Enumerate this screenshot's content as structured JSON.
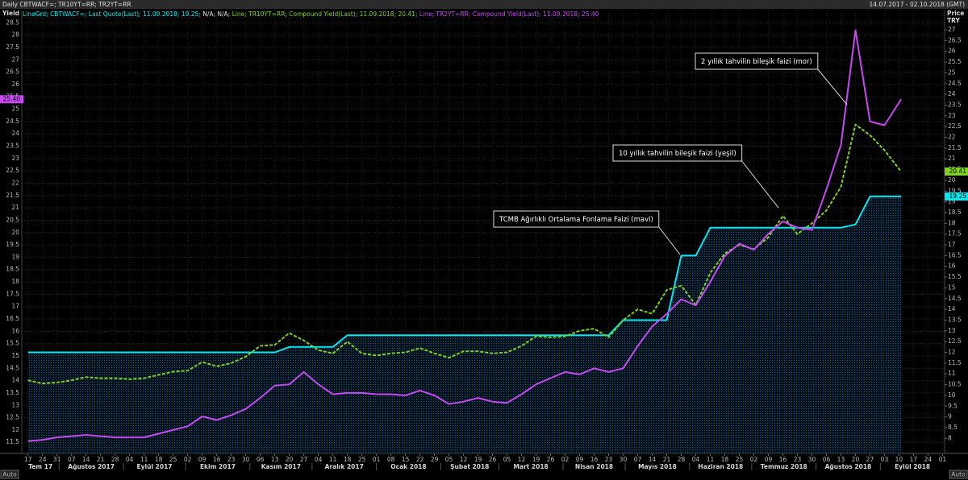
{
  "chart_data": {
    "type": "line",
    "title": "Daily CBTWACF=; TR10YT=RR; TR2YT=RR",
    "date_range": "14.07.2017 - 02.10.2018 (GMT)",
    "ylabel": "Yield",
    "y2label": [
      "Price",
      "TRY"
    ],
    "auto_button": "Auto",
    "legend_gap": "N/A; N/A;",
    "xlim": [
      "2017-07-14",
      "2018-10-02"
    ],
    "ylim": [
      11.05,
      29.0
    ],
    "y2lim": [
      7.3,
      27.9
    ],
    "grid": true,
    "x": [
      "2017-07-17",
      "2017-07-24",
      "2017-07-31",
      "2017-08-07",
      "2017-08-14",
      "2017-08-21",
      "2017-08-28",
      "2017-09-04",
      "2017-09-11",
      "2017-09-18",
      "2017-09-25",
      "2017-10-02",
      "2017-10-09",
      "2017-10-16",
      "2017-10-23",
      "2017-10-30",
      "2017-11-06",
      "2017-11-13",
      "2017-11-20",
      "2017-11-27",
      "2017-12-04",
      "2017-12-11",
      "2017-12-18",
      "2017-12-25",
      "2018-01-01",
      "2018-01-08",
      "2018-01-15",
      "2018-01-22",
      "2018-01-29",
      "2018-02-05",
      "2018-02-12",
      "2018-02-19",
      "2018-02-26",
      "2018-03-05",
      "2018-03-12",
      "2018-03-19",
      "2018-03-26",
      "2018-04-02",
      "2018-04-09",
      "2018-04-16",
      "2018-04-23",
      "2018-04-30",
      "2018-05-07",
      "2018-05-14",
      "2018-05-21",
      "2018-05-28",
      "2018-06-04",
      "2018-06-11",
      "2018-06-18",
      "2018-06-25",
      "2018-07-02",
      "2018-07-09",
      "2018-07-16",
      "2018-07-23",
      "2018-07-30",
      "2018-08-06",
      "2018-08-13",
      "2018-08-20",
      "2018-08-27",
      "2018-09-03",
      "2018-09-11"
    ],
    "series": [
      {
        "legend": "LineGrd; CBTWACF=; Last Quote(Last); 11.09.2018; 19.25;",
        "color": "#00e8f0",
        "axis": "y2",
        "style": "solid",
        "area": true,
        "value_label": "19.25",
        "values": [
          12,
          12,
          12,
          12,
          12,
          12,
          12,
          12,
          12,
          12,
          12,
          12,
          12,
          12,
          12,
          12,
          12,
          12,
          12.25,
          12.25,
          12.25,
          12.25,
          12.8,
          12.8,
          12.8,
          12.8,
          12.8,
          12.8,
          12.8,
          12.8,
          12.8,
          12.8,
          12.8,
          12.8,
          12.8,
          12.8,
          12.8,
          12.8,
          12.8,
          12.8,
          12.8,
          13.5,
          13.5,
          13.5,
          13.5,
          16.5,
          16.5,
          17.8,
          17.8,
          17.8,
          17.8,
          17.8,
          17.8,
          17.8,
          17.8,
          17.8,
          17.8,
          17.95,
          19.25,
          19.25,
          19.25
        ]
      },
      {
        "legend": "Line; TR10YT=RR; Compound Yield(Last); 11.09.2018; 20.41;",
        "color": "#7ed321",
        "axis": "y2",
        "style": "dashed",
        "area": false,
        "value_label": "20.41",
        "values": [
          10.7,
          10.55,
          10.6,
          10.7,
          10.85,
          10.8,
          10.8,
          10.75,
          10.8,
          10.95,
          11.1,
          11.15,
          11.55,
          11.35,
          11.5,
          11.8,
          12.3,
          12.35,
          12.9,
          12.55,
          12.1,
          11.95,
          12.5,
          11.95,
          11.85,
          11.95,
          12.0,
          12.2,
          11.95,
          11.75,
          12.05,
          12.05,
          11.95,
          12.0,
          12.3,
          12.75,
          12.7,
          12.75,
          13.0,
          13.1,
          12.7,
          13.5,
          14.0,
          13.8,
          14.9,
          15.1,
          14.2,
          15.7,
          16.6,
          17.0,
          16.8,
          17.35,
          18.35,
          17.5,
          18.0,
          18.6,
          19.7,
          22.6,
          22.1,
          21.4,
          20.41
        ]
      },
      {
        "legend": "Line; TR2YT=RR; Compound Yield(Last); 11.09.2018; 25.40",
        "color": "#c64af0",
        "axis": "y",
        "style": "solid",
        "area": false,
        "value_label": "25.40",
        "values": [
          11.55,
          11.6,
          11.7,
          11.75,
          11.8,
          11.75,
          11.7,
          11.7,
          11.7,
          11.85,
          12.0,
          12.15,
          12.55,
          12.4,
          12.6,
          12.85,
          13.3,
          13.8,
          13.85,
          14.35,
          13.85,
          13.45,
          13.5,
          13.5,
          13.45,
          13.45,
          13.4,
          13.6,
          13.4,
          13.05,
          13.15,
          13.3,
          13.15,
          13.1,
          13.45,
          13.85,
          14.1,
          14.35,
          14.25,
          14.5,
          14.35,
          14.5,
          15.4,
          16.2,
          16.7,
          17.3,
          17.05,
          18.0,
          19.05,
          19.55,
          19.3,
          19.95,
          20.45,
          20.2,
          20.1,
          21.75,
          23.55,
          28.2,
          24.5,
          24.35,
          25.4
        ]
      }
    ],
    "yticks": [
      {
        "value": 11.5,
        "label": "11.5"
      },
      12,
      {
        "value": 12.5,
        "label": "12.5"
      },
      13,
      {
        "value": 13.5,
        "label": "13.5"
      },
      14,
      {
        "value": 14.5,
        "label": "14.5"
      },
      15,
      {
        "value": 15.5,
        "label": "15.5"
      },
      16,
      {
        "value": 16.5,
        "label": "16.5"
      },
      17,
      {
        "value": 17.5,
        "label": "17.5"
      },
      18,
      {
        "value": 18.5,
        "label": "18.5"
      },
      19,
      {
        "value": 19.5,
        "label": "19.5"
      },
      20,
      {
        "value": 20.5,
        "label": "20.5"
      },
      21,
      {
        "value": 21.5,
        "label": "21.5"
      },
      22,
      {
        "value": 22.5,
        "label": "22.5"
      },
      23,
      {
        "value": 23.5,
        "label": "23.5"
      },
      24,
      {
        "value": 24.5,
        "label": "24.5"
      },
      25,
      {
        "value": 25.5,
        "label": "25.5"
      },
      26,
      {
        "value": 26.5,
        "label": "26.5"
      },
      27,
      {
        "value": 27.5,
        "label": "27.5"
      },
      28,
      {
        "value": 28.5,
        "label": "28.5"
      }
    ],
    "y2ticks": [
      8,
      8.5,
      9,
      9.5,
      10,
      10.5,
      11,
      11.5,
      12,
      12.5,
      13,
      13.5,
      14,
      14.5,
      15,
      15.5,
      16,
      16.5,
      17,
      17.5,
      18,
      18.5,
      19,
      19.5,
      20,
      20.5,
      21,
      21.5,
      22,
      22.5,
      23,
      23.5,
      24,
      24.5,
      25,
      25.5,
      26,
      26.5,
      27
    ],
    "xticks": [
      {
        "value": "2017-07-17",
        "label": "17"
      },
      {
        "value": "2017-07-24",
        "label": "24"
      },
      {
        "value": "2017-07-31",
        "label": "31"
      },
      {
        "value": "2017-08-07",
        "label": "07"
      },
      {
        "value": "2017-08-14",
        "label": "14"
      },
      {
        "value": "2017-08-21",
        "label": "21"
      },
      {
        "value": "2017-08-28",
        "label": "28"
      },
      {
        "value": "2017-09-04",
        "label": "04"
      },
      {
        "value": "2017-09-11",
        "label": "11"
      },
      {
        "value": "2017-09-18",
        "label": "18"
      },
      {
        "value": "2017-09-25",
        "label": "25"
      },
      {
        "value": "2017-10-02",
        "label": "02"
      },
      {
        "value": "2017-10-09",
        "label": "09"
      },
      {
        "value": "2017-10-16",
        "label": "16"
      },
      {
        "value": "2017-10-23",
        "label": "23"
      },
      {
        "value": "2017-10-30",
        "label": "30"
      },
      {
        "value": "2017-11-06",
        "label": "06"
      },
      {
        "value": "2017-11-13",
        "label": "13"
      },
      {
        "value": "2017-11-20",
        "label": "20"
      },
      {
        "value": "2017-11-27",
        "label": "27"
      },
      {
        "value": "2017-12-04",
        "label": "04"
      },
      {
        "value": "2017-12-11",
        "label": "11"
      },
      {
        "value": "2017-12-18",
        "label": "18"
      },
      {
        "value": "2017-12-25",
        "label": "25"
      },
      {
        "value": "2018-01-01",
        "label": "01"
      },
      {
        "value": "2018-01-08",
        "label": "08"
      },
      {
        "value": "2018-01-15",
        "label": "15"
      },
      {
        "value": "2018-01-22",
        "label": "22"
      },
      {
        "value": "2018-01-29",
        "label": "29"
      },
      {
        "value": "2018-02-05",
        "label": "05"
      },
      {
        "value": "2018-02-12",
        "label": "12"
      },
      {
        "value": "2018-02-19",
        "label": "19"
      },
      {
        "value": "2018-02-26",
        "label": "26"
      },
      {
        "value": "2018-03-05",
        "label": "05"
      },
      {
        "value": "2018-03-12",
        "label": "12"
      },
      {
        "value": "2018-03-19",
        "label": "19"
      },
      {
        "value": "2018-03-26",
        "label": "26"
      },
      {
        "value": "2018-04-02",
        "label": "02"
      },
      {
        "value": "2018-04-09",
        "label": "09"
      },
      {
        "value": "2018-04-16",
        "label": "16"
      },
      {
        "value": "2018-04-23",
        "label": "23"
      },
      {
        "value": "2018-04-30",
        "label": "30"
      },
      {
        "value": "2018-05-07",
        "label": "07"
      },
      {
        "value": "2018-05-14",
        "label": "14"
      },
      {
        "value": "2018-05-21",
        "label": "21"
      },
      {
        "value": "2018-05-28",
        "label": "28"
      },
      {
        "value": "2018-06-04",
        "label": "04"
      },
      {
        "value": "2018-06-11",
        "label": "11"
      },
      {
        "value": "2018-06-18",
        "label": "18"
      },
      {
        "value": "2018-06-25",
        "label": "25"
      },
      {
        "value": "2018-07-02",
        "label": "02"
      },
      {
        "value": "2018-07-09",
        "label": "09"
      },
      {
        "value": "2018-07-16",
        "label": "16"
      },
      {
        "value": "2018-07-23",
        "label": "23"
      },
      {
        "value": "2018-07-30",
        "label": "30"
      },
      {
        "value": "2018-08-06",
        "label": "06"
      },
      {
        "value": "2018-08-13",
        "label": "13"
      },
      {
        "value": "2018-08-20",
        "label": "20"
      },
      {
        "value": "2018-08-27",
        "label": "27"
      },
      {
        "value": "2018-09-03",
        "label": "03"
      },
      {
        "value": "2018-09-10",
        "label": "10"
      },
      {
        "value": "2018-09-17",
        "label": "17"
      },
      {
        "value": "2018-09-24",
        "label": "24"
      },
      {
        "value": "2018-10-01",
        "label": "01"
      }
    ],
    "months": [
      {
        "value": "2017-07-01",
        "label": "Tem 17"
      },
      {
        "value": "2017-08-01",
        "label": "Ağustos 2017"
      },
      {
        "value": "2017-09-01",
        "label": "Eylül 2017"
      },
      {
        "value": "2017-10-01",
        "label": "Ekim 2017"
      },
      {
        "value": "2017-11-01",
        "label": "Kasım 2017"
      },
      {
        "value": "2017-12-01",
        "label": "Aralık 2017"
      },
      {
        "value": "2018-01-01",
        "label": "Ocak 2018"
      },
      {
        "value": "2018-02-01",
        "label": "Şubat 2018"
      },
      {
        "value": "2018-03-01",
        "label": "Mart 2018"
      },
      {
        "value": "2018-04-01",
        "label": "Nisan 2018"
      },
      {
        "value": "2018-05-01",
        "label": "Mayıs 2018"
      },
      {
        "value": "2018-06-01",
        "label": "Haziran 2018"
      },
      {
        "value": "2018-07-01",
        "label": "Temmuz 2018"
      },
      {
        "value": "2018-08-01",
        "label": "Ağustos 2018"
      },
      {
        "value": "2018-09-01",
        "label": "Eylül 2018"
      }
    ],
    "annotations": [
      {
        "text": "2 yıllık tahvilin bileşik faizi (mor)"
      },
      {
        "text": "10 yıllık tahvilin bileşik faizi (yeşil)"
      },
      {
        "text": "TCMB Ağırlıklı Ortalama Fonlama Faizi (mavi)"
      }
    ]
  }
}
